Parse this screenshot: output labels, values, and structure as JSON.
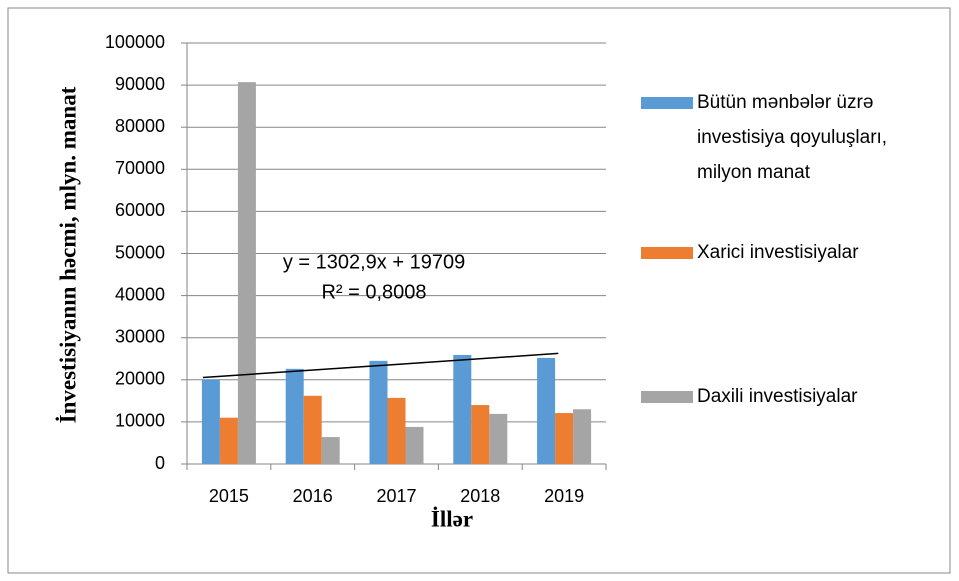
{
  "chart_data": {
    "type": "bar",
    "y_label": "İnvestisiyanın həcmi, mlyn. manat",
    "x_label": "İllər",
    "categories": [
      "2015",
      "2016",
      "2017",
      "2018",
      "2019"
    ],
    "series": [
      {
        "name": "Bütün mənbələr üzrə investisiya qoyuluşları, milyon manat",
        "color": "#5b9bd5",
        "values": [
          20100,
          22600,
          24500,
          25900,
          25200
        ]
      },
      {
        "name": "Xarici investisiyalar",
        "color": "#ed7d31",
        "values": [
          11000,
          16200,
          15700,
          14000,
          12100
        ]
      },
      {
        "name": "Daxili investisiyalar",
        "color": "#a5a5a5",
        "values": [
          90700,
          6400,
          8800,
          11900,
          13000
        ]
      }
    ],
    "trendline": {
      "series": 0,
      "equation": "y = 1302,9x + 19709",
      "r2": "R² = 0,8008"
    },
    "ylim": [
      0,
      100000
    ],
    "yticks": [
      0,
      10000,
      20000,
      30000,
      40000,
      50000,
      60000,
      70000,
      80000,
      90000,
      100000
    ],
    "grid": true,
    "legend": "right"
  }
}
